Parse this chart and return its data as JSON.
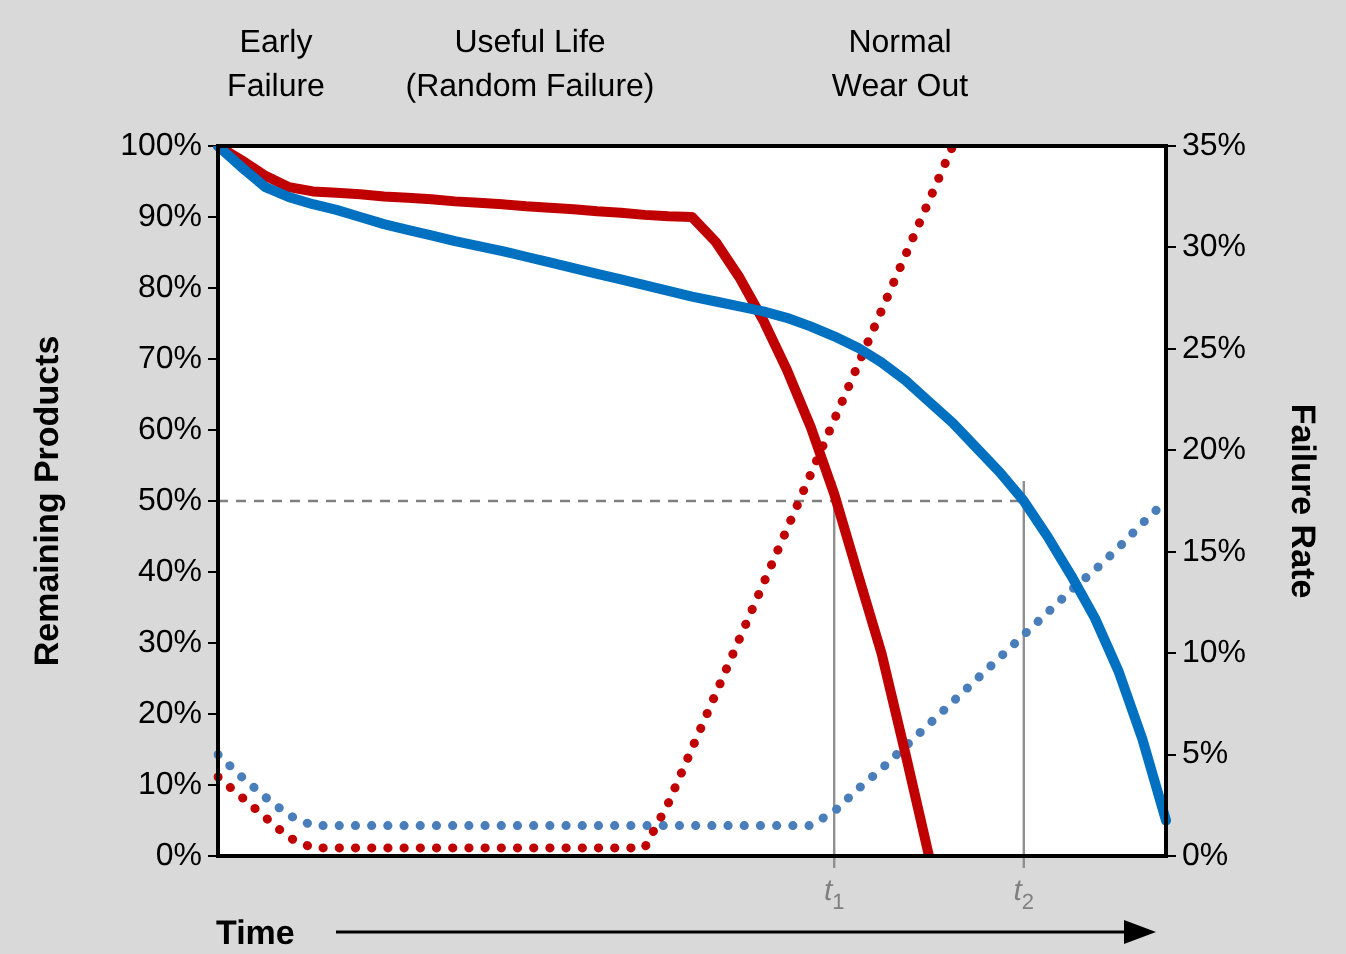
{
  "chart_data": {
    "type": "line",
    "xlabel": "Time",
    "ylabel": "Remaining Products",
    "y2label": "Failure Rate",
    "annotations": [
      "Early\nFailure",
      "Useful Life\n(Random Failure)",
      "Normal\nWear Out"
    ],
    "categories": [
      null,
      null,
      null,
      null,
      null,
      null,
      null,
      null,
      null,
      null,
      null,
      null,
      null,
      null,
      null,
      null,
      null,
      null,
      null,
      null,
      null,
      null,
      null,
      null,
      null,
      null,
      "t$_{1}$",
      null,
      null,
      null,
      null,
      null,
      null,
      null,
      "t$_{2}$",
      null,
      null,
      null,
      null,
      null,
      null
    ],
    "series": [
      {
        "color": "#0070c0",
        "line_style": "solid",
        "values": [
          100,
          97,
          94.2,
          92.8,
          91.8,
          91,
          90,
          89,
          88.2,
          87.4,
          86.6,
          85.9,
          85.2,
          84.4,
          83.6,
          82.8,
          82,
          81.2,
          80.4,
          79.6,
          78.8,
          78.1,
          77.4,
          76.7,
          75.8,
          74.6,
          73.2,
          71.6,
          69.5,
          67,
          64,
          61,
          57.5,
          54,
          50,
          45,
          39.5,
          33.5,
          26,
          16.5,
          5
        ]
      },
      {
        "color": "#c00000",
        "line_style": "solid",
        "values": [
          100,
          98,
          95.8,
          94.2,
          93.6,
          93.4,
          93.2,
          92.9,
          92.7,
          92.5,
          92.2,
          92,
          91.8,
          91.5,
          91.3,
          91.1,
          90.8,
          90.6,
          90.3,
          90.1,
          90,
          86.5,
          81.5,
          75.5,
          68.5,
          60.5,
          51,
          39.7,
          28.5,
          14.5,
          0,
          null,
          null,
          null,
          null,
          null,
          null,
          null,
          null,
          null,
          null
        ]
      },
      {
        "color": "#c00000",
        "line_style": "dotted",
        "axis": "y2",
        "values": [
          3.9,
          2.9,
          1.9,
          0.9,
          0.4,
          0.4,
          0.4,
          0.4,
          0.4,
          0.4,
          0.4,
          0.4,
          0.4,
          0.4,
          0.4,
          0.4,
          0.4,
          0.4,
          0.4,
          2.6,
          5.3,
          8,
          10.7,
          13.4,
          16.1,
          18.8,
          21.5,
          24.2,
          26.9,
          29.6,
          32.3,
          35,
          null,
          null,
          null,
          null,
          null,
          null,
          null,
          null,
          null
        ]
      },
      {
        "color": "#4a7ebb",
        "line_style": "dotted",
        "axis": "y2",
        "values": [
          5,
          3.9,
          2.9,
          2,
          1.5,
          1.5,
          1.5,
          1.5,
          1.5,
          1.5,
          1.5,
          1.5,
          1.5,
          1.5,
          1.5,
          1.5,
          1.5,
          1.5,
          1.5,
          1.5,
          1.5,
          1.5,
          1.5,
          1.5,
          1.5,
          1.5,
          2.2,
          3.3,
          4.3,
          5.4,
          6.5,
          7.6,
          8.7,
          9.8,
          10.9,
          12,
          13.1,
          14.1,
          15.2,
          16.4,
          17.5
        ]
      }
    ],
    "ylim": [
      0,
      100
    ],
    "yticks": [
      {
        "value": 0,
        "label": "0%"
      },
      {
        "value": 10,
        "label": "10%"
      },
      {
        "value": 20,
        "label": "20%"
      },
      {
        "value": 30,
        "label": "30%"
      },
      {
        "value": 40,
        "label": "40%"
      },
      {
        "value": 50,
        "label": "50%"
      },
      {
        "value": 60,
        "label": "60%"
      },
      {
        "value": 70,
        "label": "70%"
      },
      {
        "value": 80,
        "label": "80%"
      },
      {
        "value": 90,
        "label": "90%"
      },
      {
        "value": 100,
        "label": "100%"
      }
    ],
    "y2lim": [
      0,
      35
    ],
    "y2ticks": [
      {
        "value": 0,
        "label": "0%"
      },
      {
        "value": 5,
        "label": "5%"
      },
      {
        "value": 10,
        "label": "10%"
      },
      {
        "value": 15,
        "label": "15%"
      },
      {
        "value": 20,
        "label": "20%"
      },
      {
        "value": 25,
        "label": "25%"
      },
      {
        "value": 30,
        "label": "30%"
      },
      {
        "value": 35,
        "label": "35%"
      }
    ],
    "ref_lines": [
      {
        "axis": "y",
        "value": 50,
        "color": "#808080",
        "line_style": "dashed"
      },
      {
        "axis": "x",
        "value": "t$_{1}$",
        "color": "#909090",
        "line_style": "solid"
      },
      {
        "axis": "x",
        "value": "t$_{2}$",
        "color": "#909090",
        "line_style": "solid"
      }
    ],
    "grid": false,
    "legend": false,
    "marker": "none"
  }
}
